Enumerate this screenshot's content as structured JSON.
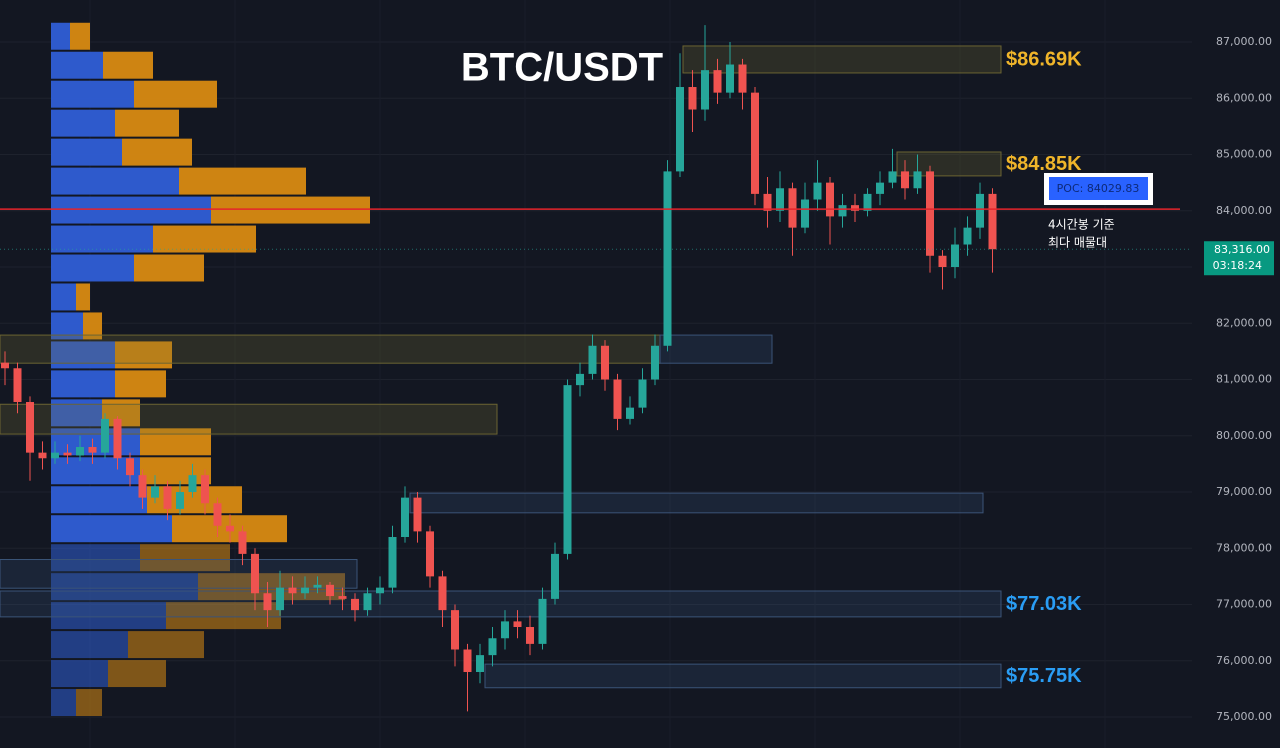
{
  "chart_data": {
    "type": "candlestick",
    "title": "BTC/USDT",
    "ylim": [
      74449,
      87747
    ],
    "yticks": [
      {
        "value": 75000,
        "label": "75,000.00"
      },
      {
        "value": 76000,
        "label": "76,000.00"
      },
      {
        "value": 77000,
        "label": "77,000.00"
      },
      {
        "value": 78000,
        "label": "78,000.00"
      },
      {
        "value": 79000,
        "label": "79,000.00"
      },
      {
        "value": 80000,
        "label": "80,000.00"
      },
      {
        "value": 81000,
        "label": "81,000.00"
      },
      {
        "value": 82000,
        "label": "82,000.00"
      },
      {
        "value": 83000,
        "label": "83,000.00"
      },
      {
        "value": 84000,
        "label": "84,000.00"
      },
      {
        "value": 85000,
        "label": "85,000.00"
      },
      {
        "value": 86000,
        "label": "86,000.00"
      },
      {
        "value": 87000,
        "label": "87,000.00"
      }
    ],
    "grid": true,
    "up_color": "#26a69a",
    "down_color": "#ef5350",
    "open": [
      81300,
      81200,
      80600,
      79700,
      79600,
      79700,
      79650,
      79800,
      79700,
      80300,
      79600,
      79300,
      78900,
      79100,
      78700,
      79000,
      79300,
      78800,
      78400,
      78300,
      77900,
      77200,
      76900,
      77300,
      77200,
      77300,
      77350,
      77150,
      77100,
      76900,
      77200,
      77300,
      78200,
      78900,
      78300,
      77500,
      76900,
      76200,
      75800,
      76100,
      76400,
      76700,
      76600,
      76300,
      77100,
      77900,
      80900,
      81100,
      81600,
      81000,
      80300,
      80500,
      81000,
      81600,
      84700,
      86200,
      85800,
      86500,
      86100,
      86600,
      86100,
      84300,
      84000,
      84400,
      83700,
      84200,
      84500,
      83900,
      84100,
      84000,
      84300,
      84500,
      84700,
      84400,
      84700,
      83200,
      83000,
      83400,
      83700,
      84300
    ],
    "high": [
      81500,
      81300,
      80700,
      79900,
      79900,
      79850,
      80000,
      79950,
      80400,
      80350,
      79700,
      79400,
      79300,
      79200,
      79200,
      79500,
      79400,
      78900,
      78600,
      78400,
      78000,
      77400,
      77600,
      77500,
      77500,
      77500,
      77400,
      77300,
      77200,
      77300,
      77500,
      78400,
      79100,
      79000,
      78400,
      77600,
      77000,
      76300,
      76300,
      76600,
      76900,
      76900,
      76800,
      77300,
      78100,
      81000,
      81300,
      81800,
      81700,
      81100,
      80700,
      81200,
      81800,
      84900,
      86800,
      86500,
      87300,
      86700,
      87000,
      86700,
      86200,
      84600,
      84700,
      84500,
      84500,
      84900,
      84600,
      84300,
      84300,
      84400,
      84700,
      85100,
      84900,
      85000,
      84800,
      83300,
      83700,
      83900,
      84500,
      84400
    ],
    "low": [
      80900,
      80400,
      79200,
      79400,
      79500,
      79500,
      79550,
      79500,
      79600,
      79400,
      79100,
      78700,
      78800,
      78500,
      78600,
      78900,
      78600,
      78200,
      78100,
      77700,
      76900,
      76600,
      76800,
      77000,
      77100,
      77200,
      77000,
      76900,
      76700,
      76800,
      77000,
      77200,
      78100,
      78100,
      77300,
      76600,
      75900,
      75100,
      75600,
      75900,
      76200,
      76400,
      76100,
      76200,
      77000,
      77800,
      80700,
      81000,
      80800,
      80100,
      80200,
      80400,
      80900,
      81500,
      84600,
      85400,
      85600,
      85900,
      86000,
      85800,
      84100,
      83700,
      83800,
      83200,
      83600,
      84000,
      83400,
      83700,
      83800,
      83900,
      84100,
      84400,
      84200,
      84300,
      82900,
      82600,
      82800,
      83200,
      83500,
      82900
    ],
    "close": [
      81200,
      80600,
      79700,
      79600,
      79700,
      79650,
      79800,
      79700,
      80300,
      79600,
      79300,
      78900,
      79100,
      78700,
      79000,
      79300,
      78800,
      78400,
      78300,
      77900,
      77200,
      76900,
      77300,
      77200,
      77300,
      77350,
      77150,
      77100,
      76900,
      77200,
      77300,
      78200,
      78900,
      78300,
      77500,
      76900,
      76200,
      75800,
      76100,
      76400,
      76700,
      76600,
      76300,
      77100,
      77900,
      80900,
      81100,
      81600,
      81000,
      80300,
      80500,
      81000,
      81600,
      84700,
      86200,
      85800,
      86500,
      86100,
      86600,
      86100,
      84300,
      84000,
      84400,
      83700,
      84200,
      84500,
      83900,
      84100,
      84000,
      84300,
      84500,
      84700,
      84400,
      84700,
      83200,
      83000,
      83400,
      83700,
      84300,
      83316
    ],
    "last_price_label": "83,316.00",
    "countdown": "03:18:24",
    "volume_profile": {
      "bins": [
        87360,
        86845,
        86330,
        85815,
        85300,
        84785,
        84270,
        83755,
        83240,
        82725,
        82210,
        81695,
        81180,
        80665,
        80150,
        79635,
        79120,
        78605,
        78090,
        77575,
        77060,
        76545,
        76030,
        75515,
        75000
      ],
      "buy": [
        19,
        52,
        83,
        64,
        71,
        128,
        160,
        102,
        83,
        25,
        32,
        64,
        64,
        51,
        89,
        89,
        96,
        121,
        89,
        147,
        115,
        77,
        57,
        25
      ],
      "sell": [
        20,
        50,
        83,
        64,
        70,
        127,
        159,
        103,
        70,
        14,
        19,
        57,
        51,
        38,
        71,
        71,
        95,
        115,
        90,
        147,
        115,
        76,
        58,
        26
      ],
      "buy_color": "#2f5ed6",
      "sell_color": "#d88a12"
    },
    "poc": {
      "value": 84029.83,
      "label": "POC: 84029.83",
      "note": [
        "4시간봉 기준",
        "최다 매물대"
      ],
      "color": "#e5242b"
    },
    "zones": [
      {
        "low": 86450,
        "high": 86930,
        "color": "yellow",
        "label": "$86.69K"
      },
      {
        "low": 84620,
        "high": 85045,
        "color": "yellow",
        "label": "$84.85K"
      },
      {
        "low": 81290,
        "high": 81790,
        "color": "yellow"
      },
      {
        "low": 81290,
        "high": 81790,
        "color": "blue"
      },
      {
        "low": 80030,
        "high": 80560,
        "color": "yellow"
      },
      {
        "low": 78630,
        "high": 78980,
        "color": "blue"
      },
      {
        "low": 77290,
        "high": 77800,
        "color": "blue"
      },
      {
        "low": 76780,
        "high": 77240,
        "color": "blue",
        "label": "$77.03K"
      },
      {
        "low": 75520,
        "high": 75940,
        "color": "blue",
        "label": "$75.75K"
      }
    ]
  }
}
